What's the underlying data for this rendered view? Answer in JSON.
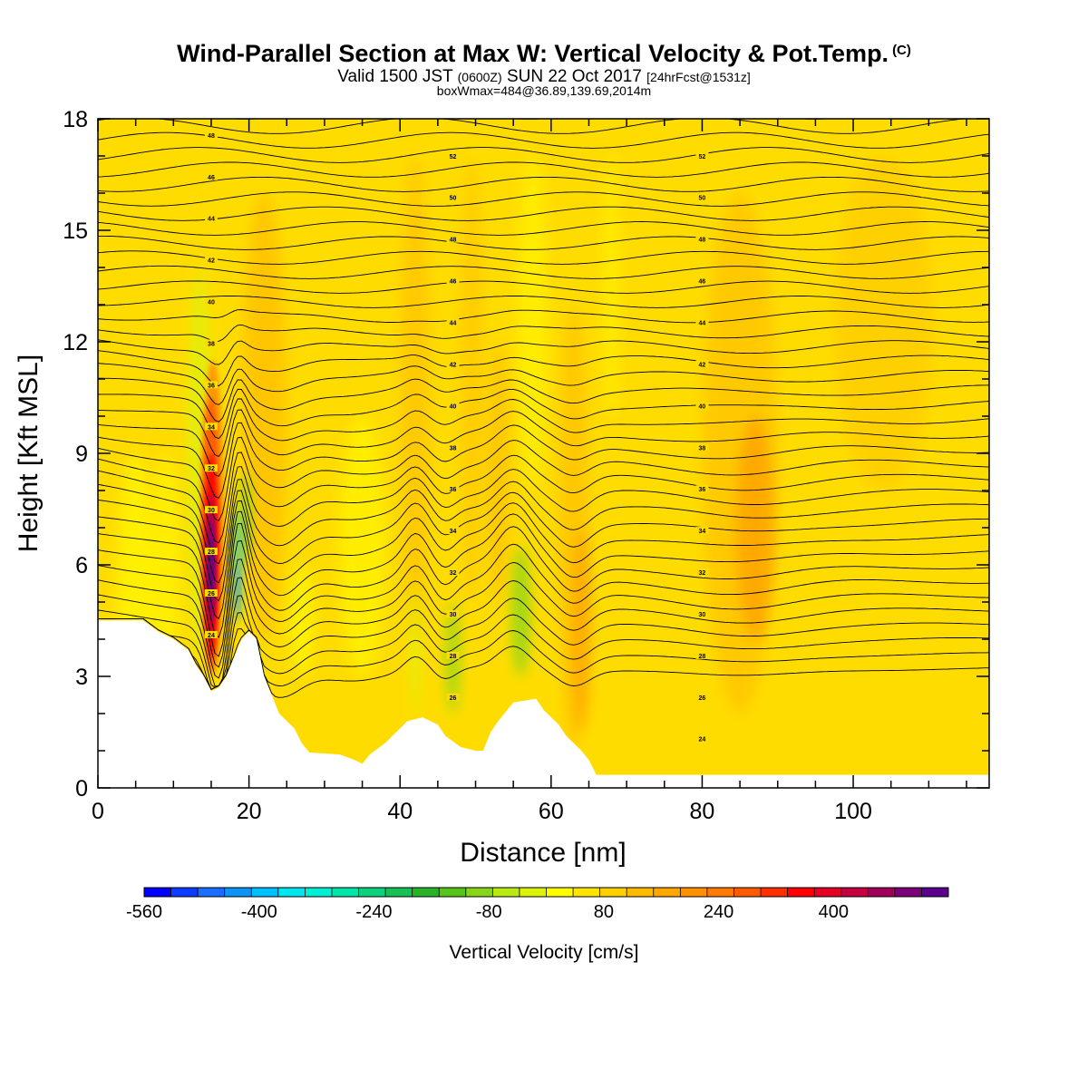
{
  "header": {
    "title": "Wind-Parallel Section at Max W: Vertical Velocity & Pot.Temp.",
    "copyright": "(C)",
    "valid_prefix": "Valid 1500 JST",
    "valid_utc": "(0600Z)",
    "valid_date": "SUN 22 Oct 2017",
    "forecast": "[24hrFcst@1531z]",
    "boxinfo": "boxWmax=484@36.89,139.69,2014m"
  },
  "chart_data": {
    "type": "contour",
    "xlabel": "Distance [nm]",
    "ylabel": "Height [Kft MSL]",
    "xlim": [
      0,
      118
    ],
    "ylim": [
      0,
      18
    ],
    "x_ticks": [
      "0",
      "20",
      "40",
      "60",
      "80",
      "100"
    ],
    "y_ticks": [
      "0",
      "3",
      "6",
      "9",
      "12",
      "15",
      "18"
    ],
    "terrain": [
      [
        0,
        4.5
      ],
      [
        6,
        4.5
      ],
      [
        8,
        4.2
      ],
      [
        10,
        4.0
      ],
      [
        12,
        3.7
      ],
      [
        13,
        3.3
      ],
      [
        14,
        3.0
      ],
      [
        15,
        2.6
      ],
      [
        16,
        2.7
      ],
      [
        17,
        3.0
      ],
      [
        18,
        3.5
      ],
      [
        19,
        4.0
      ],
      [
        20,
        4.2
      ],
      [
        21,
        4.0
      ],
      [
        22,
        3.0
      ],
      [
        23,
        2.5
      ],
      [
        24,
        2.0
      ],
      [
        26,
        1.6
      ],
      [
        27,
        1.2
      ],
      [
        28,
        0.95
      ],
      [
        32,
        0.9
      ],
      [
        34,
        0.75
      ],
      [
        35,
        0.65
      ],
      [
        36,
        0.9
      ],
      [
        38,
        1.2
      ],
      [
        40,
        1.6
      ],
      [
        41,
        1.8
      ],
      [
        43,
        1.9
      ],
      [
        45,
        1.7
      ],
      [
        46,
        1.4
      ],
      [
        48,
        1.1
      ],
      [
        50,
        1.0
      ],
      [
        51,
        1.0
      ],
      [
        52,
        1.5
      ],
      [
        53,
        1.8
      ],
      [
        55,
        2.3
      ],
      [
        58,
        2.4
      ],
      [
        59,
        2.1
      ],
      [
        61,
        1.7
      ],
      [
        62,
        1.4
      ],
      [
        64,
        1.0
      ],
      [
        65,
        0.75
      ],
      [
        66,
        0.35
      ],
      [
        118,
        0.35
      ]
    ],
    "theta_levels": [
      20,
      22,
      24,
      26,
      28,
      30,
      32,
      34,
      36,
      38,
      40,
      42,
      44,
      46,
      48,
      50,
      52
    ],
    "theta_labels": [
      "24",
      "26",
      "28",
      "30",
      "32",
      "34",
      "36",
      "38",
      "40",
      "42",
      "44",
      "46",
      "48",
      "50",
      "52"
    ],
    "w_max_cms": 484,
    "colorbar": {
      "title": "Vertical Velocity [cm/s]",
      "labels": [
        "-560",
        "-400",
        "-240",
        "-80",
        "80",
        "240",
        "400"
      ],
      "min": -560,
      "max": 560,
      "step": 40,
      "colors": [
        "#0000ff",
        "#0b3cff",
        "#1a6bff",
        "#0d94f5",
        "#00bfff",
        "#00e5ee",
        "#00eed2",
        "#00e5a8",
        "#0cd27d",
        "#16c054",
        "#26b426",
        "#56c41a",
        "#87d61a",
        "#b8ea14",
        "#dcf20a",
        "#ffff00",
        "#ffe500",
        "#ffd000",
        "#ffbb00",
        "#ffa600",
        "#ff9000",
        "#ff7a00",
        "#ff5a00",
        "#ff3000",
        "#ff0000",
        "#e20024",
        "#c40040",
        "#a0005c",
        "#7a0078",
        "#5a008c"
      ]
    }
  }
}
